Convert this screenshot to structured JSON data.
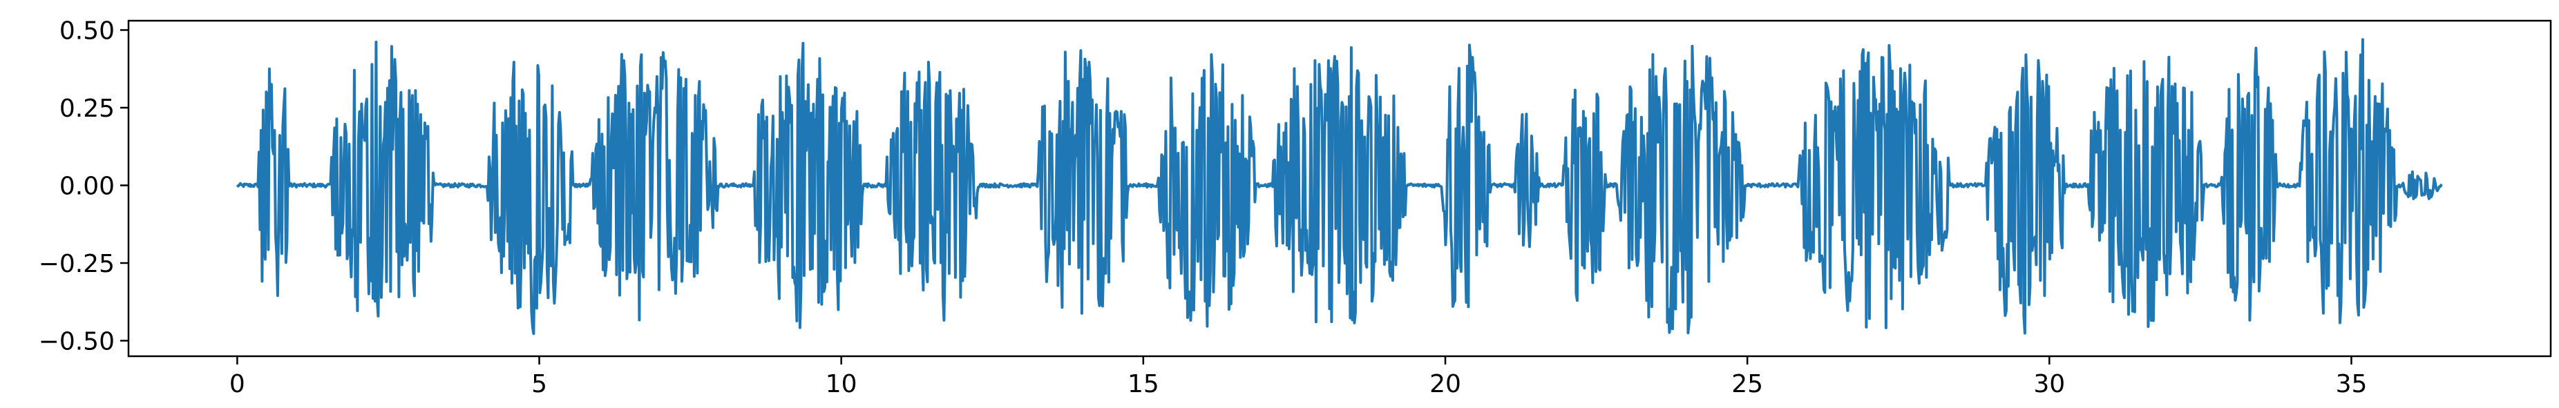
{
  "chart_data": {
    "type": "line",
    "title": "",
    "xlabel": "",
    "ylabel": "",
    "xlim": [
      -1.8,
      38.3
    ],
    "ylim": [
      -0.55,
      0.53
    ],
    "xticks": [
      {
        "value": 0,
        "label": "0"
      },
      {
        "value": 5,
        "label": "5"
      },
      {
        "value": 10,
        "label": "10"
      },
      {
        "value": 15,
        "label": "15"
      },
      {
        "value": 20,
        "label": "20"
      },
      {
        "value": 25,
        "label": "25"
      },
      {
        "value": 30,
        "label": "30"
      },
      {
        "value": 35,
        "label": "35"
      }
    ],
    "yticks": [
      {
        "value": 0.5,
        "label": "0.50"
      },
      {
        "value": 0.25,
        "label": "0.25"
      },
      {
        "value": 0.0,
        "label": "0.00"
      },
      {
        "value": -0.25,
        "label": "−0.25"
      },
      {
        "value": -0.5,
        "label": "−0.50"
      }
    ],
    "grid": false,
    "legend": "none",
    "series": [
      {
        "color": "#1f77b4",
        "x_range": [
          0,
          36.5
        ],
        "baseline_amplitude": 0.006,
        "bursts": [
          {
            "start": 0.35,
            "end": 0.85,
            "amplitude": 0.48
          },
          {
            "start": 1.55,
            "end": 3.25,
            "amplitude": 0.49
          },
          {
            "start": 4.15,
            "end": 5.55,
            "amplitude": 0.49
          },
          {
            "start": 5.85,
            "end": 7.95,
            "amplitude": 0.49
          },
          {
            "start": 8.55,
            "end": 10.35,
            "amplitude": 0.49
          },
          {
            "start": 10.75,
            "end": 12.25,
            "amplitude": 0.47
          },
          {
            "start": 13.25,
            "end": 14.75,
            "amplitude": 0.49
          },
          {
            "start": 15.25,
            "end": 16.85,
            "amplitude": 0.49
          },
          {
            "start": 17.15,
            "end": 19.35,
            "amplitude": 0.49
          },
          {
            "start": 19.95,
            "end": 20.75,
            "amplitude": 0.49
          },
          {
            "start": 21.15,
            "end": 21.55,
            "amplitude": 0.25
          },
          {
            "start": 21.95,
            "end": 22.65,
            "amplitude": 0.4
          },
          {
            "start": 22.85,
            "end": 24.95,
            "amplitude": 0.49
          },
          {
            "start": 25.85,
            "end": 28.35,
            "amplitude": 0.49
          },
          {
            "start": 28.95,
            "end": 30.25,
            "amplitude": 0.49
          },
          {
            "start": 30.65,
            "end": 32.55,
            "amplitude": 0.49
          },
          {
            "start": 32.85,
            "end": 33.75,
            "amplitude": 0.49
          },
          {
            "start": 34.15,
            "end": 35.75,
            "amplitude": 0.49
          },
          {
            "start": 35.85,
            "end": 36.45,
            "amplitude": 0.05
          }
        ]
      }
    ]
  }
}
